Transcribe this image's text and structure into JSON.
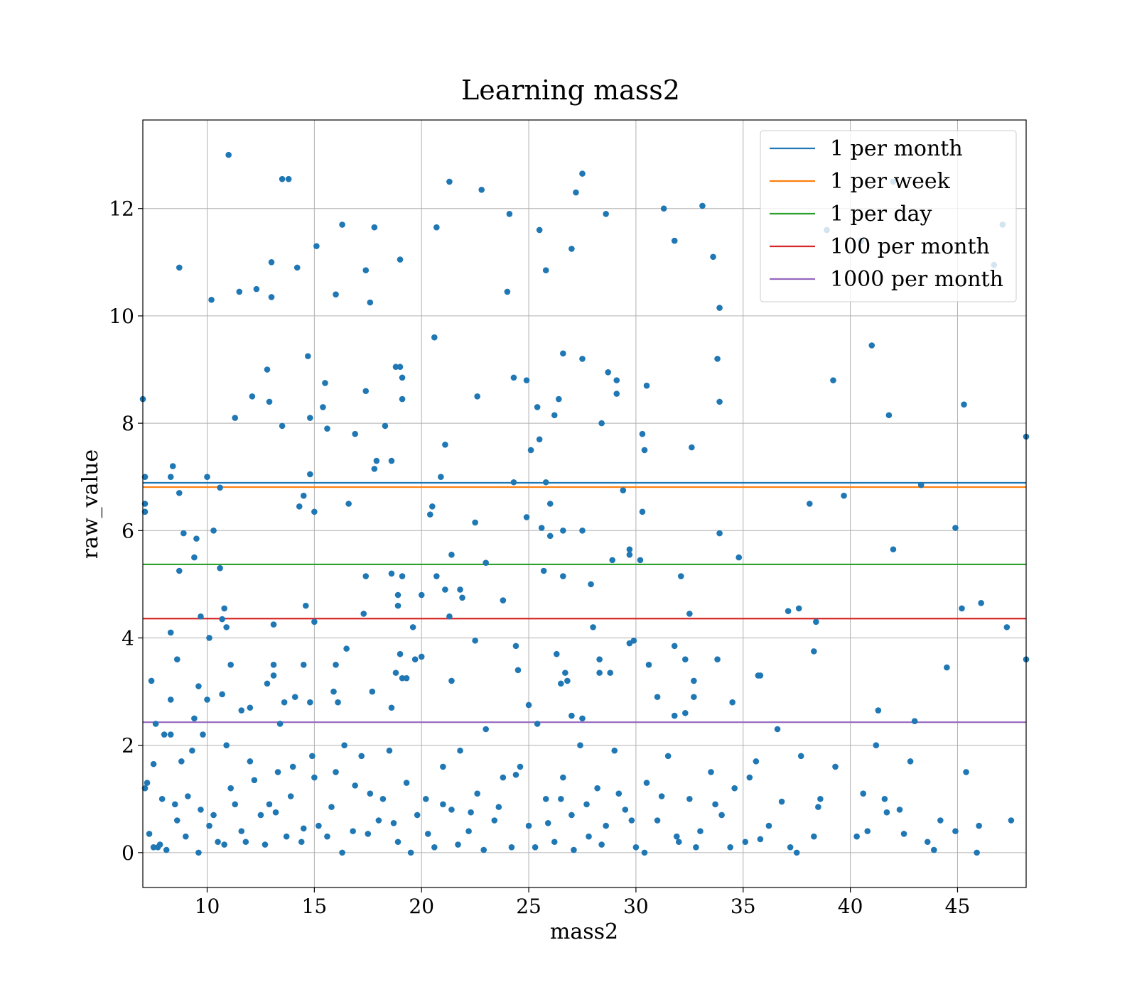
{
  "chart_data": {
    "type": "scatter",
    "title": "Learning mass2",
    "xlabel": "mass2",
    "ylabel": "raw_value",
    "xlim": [
      7.0,
      48.2
    ],
    "ylim": [
      -0.65,
      13.65
    ],
    "xticks": [
      10,
      15,
      20,
      25,
      30,
      35,
      40,
      45
    ],
    "yticks": [
      0,
      2,
      4,
      6,
      8,
      10,
      12
    ],
    "grid": true,
    "legend_position": "top-right",
    "point_color": "#1f77b4",
    "hlines": [
      {
        "name": "1 per month",
        "y": 6.89,
        "color": "#1f77b4"
      },
      {
        "name": "1 per week",
        "y": 6.81,
        "color": "#ff7f0e"
      },
      {
        "name": "1 per day",
        "y": 5.37,
        "color": "#2ca02c"
      },
      {
        "name": "100 per month",
        "y": 4.36,
        "color": "#d62728"
      },
      {
        "name": "1000 per month",
        "y": 2.43,
        "color": "#9467bd"
      }
    ],
    "points": [
      [
        11.0,
        13.0
      ],
      [
        13.5,
        12.55
      ],
      [
        13.8,
        12.55
      ],
      [
        21.3,
        12.5
      ],
      [
        22.8,
        12.35
      ],
      [
        27.5,
        12.65
      ],
      [
        27.2,
        12.3
      ],
      [
        31.3,
        12.0
      ],
      [
        33.1,
        12.05
      ],
      [
        42.0,
        12.5
      ],
      [
        16.3,
        11.7
      ],
      [
        17.8,
        11.65
      ],
      [
        20.7,
        11.65
      ],
      [
        24.1,
        11.9
      ],
      [
        25.5,
        11.6
      ],
      [
        28.6,
        11.9
      ],
      [
        31.8,
        11.4
      ],
      [
        38.9,
        11.6
      ],
      [
        47.1,
        11.7
      ],
      [
        40.5,
        11.4
      ],
      [
        8.7,
        10.9
      ],
      [
        10.2,
        10.3
      ],
      [
        11.5,
        10.45
      ],
      [
        12.3,
        10.5
      ],
      [
        13.0,
        10.35
      ],
      [
        13.0,
        11.0
      ],
      [
        14.2,
        10.9
      ],
      [
        15.1,
        11.3
      ],
      [
        16.0,
        10.4
      ],
      [
        17.4,
        10.85
      ],
      [
        17.6,
        10.25
      ],
      [
        19.0,
        11.05
      ],
      [
        24.0,
        10.45
      ],
      [
        25.8,
        10.85
      ],
      [
        27.0,
        11.25
      ],
      [
        33.6,
        11.1
      ],
      [
        33.9,
        10.15
      ],
      [
        46.7,
        10.95
      ],
      [
        14.7,
        9.25
      ],
      [
        18.8,
        9.05
      ],
      [
        19.0,
        9.05
      ],
      [
        20.6,
        9.6
      ],
      [
        26.6,
        9.3
      ],
      [
        27.5,
        9.2
      ],
      [
        33.8,
        9.2
      ],
      [
        41.0,
        9.45
      ],
      [
        7.0,
        8.45
      ],
      [
        11.3,
        8.1
      ],
      [
        12.1,
        8.5
      ],
      [
        12.8,
        9.0
      ],
      [
        12.9,
        8.4
      ],
      [
        14.8,
        8.1
      ],
      [
        15.4,
        8.3
      ],
      [
        15.5,
        8.75
      ],
      [
        15.6,
        7.9
      ],
      [
        13.5,
        7.95
      ],
      [
        16.9,
        7.8
      ],
      [
        17.4,
        8.6
      ],
      [
        18.3,
        7.95
      ],
      [
        19.1,
        8.85
      ],
      [
        19.1,
        8.45
      ],
      [
        22.6,
        8.5
      ],
      [
        24.3,
        8.85
      ],
      [
        24.9,
        8.8
      ],
      [
        25.4,
        8.3
      ],
      [
        26.2,
        8.15
      ],
      [
        26.4,
        8.45
      ],
      [
        28.4,
        8.0
      ],
      [
        28.7,
        8.95
      ],
      [
        29.1,
        8.8
      ],
      [
        29.1,
        8.55
      ],
      [
        30.5,
        8.7
      ],
      [
        33.9,
        8.4
      ],
      [
        39.2,
        8.8
      ],
      [
        41.8,
        8.15
      ],
      [
        45.3,
        8.35
      ],
      [
        48.2,
        7.75
      ],
      [
        7.1,
        7.0
      ],
      [
        8.3,
        7.0
      ],
      [
        8.4,
        7.2
      ],
      [
        10.0,
        7.0
      ],
      [
        14.8,
        7.05
      ],
      [
        17.8,
        7.15
      ],
      [
        17.9,
        7.3
      ],
      [
        18.6,
        7.3
      ],
      [
        20.9,
        7.0
      ],
      [
        21.1,
        7.6
      ],
      [
        25.1,
        7.5
      ],
      [
        25.5,
        7.7
      ],
      [
        30.3,
        7.8
      ],
      [
        30.4,
        7.5
      ],
      [
        32.6,
        7.55
      ],
      [
        7.1,
        6.5
      ],
      [
        7.1,
        6.35
      ],
      [
        8.7,
        6.7
      ],
      [
        10.6,
        6.8
      ],
      [
        14.3,
        6.45
      ],
      [
        14.5,
        6.65
      ],
      [
        15.0,
        6.35
      ],
      [
        16.6,
        6.5
      ],
      [
        20.4,
        6.3
      ],
      [
        20.5,
        6.45
      ],
      [
        22.5,
        6.15
      ],
      [
        24.9,
        6.25
      ],
      [
        25.6,
        6.05
      ],
      [
        26.0,
        6.5
      ],
      [
        29.4,
        6.75
      ],
      [
        30.3,
        6.35
      ],
      [
        38.1,
        6.5
      ],
      [
        39.7,
        6.65
      ],
      [
        43.3,
        6.85
      ],
      [
        44.9,
        6.05
      ],
      [
        24.3,
        6.9
      ],
      [
        25.8,
        6.9
      ],
      [
        8.9,
        5.95
      ],
      [
        9.4,
        5.5
      ],
      [
        9.5,
        5.85
      ],
      [
        10.3,
        6.0
      ],
      [
        8.7,
        5.25
      ],
      [
        10.6,
        5.3
      ],
      [
        21.4,
        5.55
      ],
      [
        23.0,
        5.4
      ],
      [
        25.7,
        5.25
      ],
      [
        26.0,
        5.9
      ],
      [
        26.6,
        6.0
      ],
      [
        27.5,
        6.0
      ],
      [
        28.9,
        5.45
      ],
      [
        29.7,
        5.65
      ],
      [
        29.7,
        5.55
      ],
      [
        30.2,
        5.45
      ],
      [
        33.9,
        5.95
      ],
      [
        34.8,
        5.5
      ],
      [
        42.0,
        5.65
      ],
      [
        17.4,
        5.15
      ],
      [
        18.6,
        5.2
      ],
      [
        18.9,
        4.8
      ],
      [
        19.1,
        5.15
      ],
      [
        20.0,
        4.8
      ],
      [
        20.7,
        5.15
      ],
      [
        21.1,
        4.9
      ],
      [
        21.8,
        4.9
      ],
      [
        21.9,
        4.75
      ],
      [
        26.6,
        5.15
      ],
      [
        27.9,
        5.0
      ],
      [
        32.1,
        5.15
      ],
      [
        10.8,
        4.55
      ],
      [
        14.6,
        4.6
      ],
      [
        18.9,
        4.6
      ],
      [
        21.3,
        4.4
      ],
      [
        23.8,
        4.7
      ],
      [
        32.5,
        4.45
      ],
      [
        37.1,
        4.5
      ],
      [
        37.6,
        4.55
      ],
      [
        45.2,
        4.55
      ],
      [
        46.1,
        4.65
      ],
      [
        8.3,
        4.1
      ],
      [
        9.7,
        4.4
      ],
      [
        10.1,
        4.0
      ],
      [
        10.7,
        4.35
      ],
      [
        10.9,
        4.2
      ],
      [
        13.1,
        4.25
      ],
      [
        15.0,
        4.3
      ],
      [
        17.3,
        4.45
      ],
      [
        19.6,
        4.2
      ],
      [
        22.5,
        3.95
      ],
      [
        28.0,
        4.2
      ],
      [
        29.7,
        3.9
      ],
      [
        29.9,
        3.95
      ],
      [
        38.4,
        4.3
      ],
      [
        38.3,
        3.75
      ],
      [
        47.3,
        4.2
      ],
      [
        7.4,
        3.2
      ],
      [
        8.6,
        3.6
      ],
      [
        9.6,
        3.1
      ],
      [
        11.1,
        3.5
      ],
      [
        12.8,
        3.15
      ],
      [
        13.1,
        3.5
      ],
      [
        13.1,
        3.3
      ],
      [
        13.4,
        2.4
      ],
      [
        14.5,
        3.5
      ],
      [
        16.0,
        3.5
      ],
      [
        16.5,
        3.8
      ],
      [
        15.9,
        3.0
      ],
      [
        16.1,
        2.8
      ],
      [
        17.7,
        3.0
      ],
      [
        18.8,
        3.35
      ],
      [
        19.0,
        3.7
      ],
      [
        19.1,
        3.25
      ],
      [
        19.3,
        3.25
      ],
      [
        19.7,
        3.6
      ],
      [
        20.0,
        3.65
      ],
      [
        21.4,
        3.2
      ],
      [
        24.4,
        3.85
      ],
      [
        24.5,
        3.4
      ],
      [
        26.3,
        3.7
      ],
      [
        26.5,
        3.15
      ],
      [
        26.7,
        3.35
      ],
      [
        26.8,
        3.2
      ],
      [
        28.3,
        3.6
      ],
      [
        28.3,
        3.35
      ],
      [
        28.8,
        3.35
      ],
      [
        30.6,
        3.5
      ],
      [
        31.0,
        2.9
      ],
      [
        31.8,
        3.85
      ],
      [
        32.3,
        3.6
      ],
      [
        32.7,
        3.2
      ],
      [
        33.8,
        3.6
      ],
      [
        35.7,
        3.3
      ],
      [
        35.8,
        3.3
      ],
      [
        44.5,
        3.45
      ],
      [
        48.2,
        3.6
      ],
      [
        8.3,
        2.85
      ],
      [
        9.4,
        2.5
      ],
      [
        9.8,
        2.2
      ],
      [
        10.0,
        2.85
      ],
      [
        10.7,
        2.95
      ],
      [
        11.6,
        2.65
      ],
      [
        12.0,
        2.7
      ],
      [
        13.6,
        2.8
      ],
      [
        14.1,
        2.9
      ],
      [
        14.8,
        2.8
      ],
      [
        18.6,
        2.7
      ],
      [
        25.0,
        2.75
      ],
      [
        27.0,
        2.55
      ],
      [
        27.5,
        2.5
      ],
      [
        31.8,
        2.55
      ],
      [
        32.3,
        2.6
      ],
      [
        32.7,
        2.9
      ],
      [
        34.5,
        2.8
      ],
      [
        41.3,
        2.65
      ],
      [
        43.0,
        2.45
      ],
      [
        7.2,
        1.3
      ],
      [
        7.5,
        0.1
      ],
      [
        7.6,
        2.4
      ],
      [
        7.7,
        0.1
      ],
      [
        7.8,
        0.15
      ],
      [
        8.0,
        2.2
      ],
      [
        8.3,
        2.2
      ],
      [
        8.5,
        0.9
      ],
      [
        8.8,
        1.7
      ],
      [
        9.0,
        0.3
      ],
      [
        9.3,
        1.9
      ],
      [
        9.7,
        0.8
      ],
      [
        10.1,
        0.5
      ],
      [
        10.5,
        0.2
      ],
      [
        10.9,
        2.0
      ],
      [
        11.1,
        1.2
      ],
      [
        11.6,
        0.4
      ],
      [
        12.0,
        1.7
      ],
      [
        12.5,
        0.7
      ],
      [
        12.9,
        0.9
      ],
      [
        13.3,
        1.5
      ],
      [
        13.7,
        0.3
      ],
      [
        14.0,
        1.6
      ],
      [
        14.4,
        0.2
      ],
      [
        14.9,
        1.8
      ],
      [
        15.2,
        0.5
      ],
      [
        15.6,
        0.3
      ],
      [
        16.0,
        1.5
      ],
      [
        16.4,
        2.0
      ],
      [
        16.8,
        0.4
      ],
      [
        17.2,
        1.8
      ],
      [
        17.6,
        1.1
      ],
      [
        18.0,
        0.6
      ],
      [
        18.5,
        1.9
      ],
      [
        18.9,
        0.2
      ],
      [
        19.3,
        1.3
      ],
      [
        19.8,
        0.7
      ],
      [
        20.2,
        1.0
      ],
      [
        20.6,
        0.1
      ],
      [
        21.0,
        1.6
      ],
      [
        21.4,
        0.8
      ],
      [
        21.8,
        1.9
      ],
      [
        22.2,
        0.4
      ],
      [
        22.6,
        1.1
      ],
      [
        23.0,
        2.3
      ],
      [
        23.4,
        0.6
      ],
      [
        23.8,
        1.4
      ],
      [
        24.2,
        0.1
      ],
      [
        24.6,
        1.6
      ],
      [
        25.0,
        0.5
      ],
      [
        25.4,
        2.4
      ],
      [
        25.8,
        1.0
      ],
      [
        26.2,
        0.2
      ],
      [
        26.6,
        1.4
      ],
      [
        27.0,
        0.7
      ],
      [
        27.4,
        2.0
      ],
      [
        27.8,
        0.3
      ],
      [
        28.2,
        1.2
      ],
      [
        28.6,
        0.5
      ],
      [
        29.0,
        1.9
      ],
      [
        29.5,
        0.8
      ],
      [
        30.0,
        0.1
      ],
      [
        30.5,
        1.3
      ],
      [
        31.0,
        0.6
      ],
      [
        31.5,
        1.8
      ],
      [
        32.0,
        0.2
      ],
      [
        32.5,
        1.0
      ],
      [
        33.0,
        0.4
      ],
      [
        33.5,
        1.5
      ],
      [
        34.0,
        0.7
      ],
      [
        34.6,
        1.2
      ],
      [
        35.1,
        0.2
      ],
      [
        35.6,
        1.7
      ],
      [
        36.2,
        0.5
      ],
      [
        36.6,
        2.3
      ],
      [
        37.2,
        0.1
      ],
      [
        37.7,
        1.8
      ],
      [
        38.3,
        0.3
      ],
      [
        38.6,
        1.0
      ],
      [
        39.3,
        1.6
      ],
      [
        40.3,
        0.3
      ],
      [
        40.8,
        0.4
      ],
      [
        41.2,
        2.0
      ],
      [
        41.6,
        1.0
      ],
      [
        42.3,
        0.8
      ],
      [
        42.8,
        1.7
      ],
      [
        43.6,
        0.2
      ],
      [
        44.2,
        0.6
      ],
      [
        44.9,
        0.4
      ],
      [
        45.4,
        1.5
      ],
      [
        46.0,
        0.5
      ],
      [
        47.5,
        0.6
      ],
      [
        7.1,
        1.2
      ],
      [
        7.3,
        0.35
      ],
      [
        7.5,
        1.65
      ],
      [
        7.9,
        1.0
      ],
      [
        8.1,
        0.05
      ],
      [
        8.6,
        0.6
      ],
      [
        9.1,
        1.05
      ],
      [
        9.6,
        0.0
      ],
      [
        10.3,
        0.7
      ],
      [
        10.8,
        0.15
      ],
      [
        11.3,
        0.9
      ],
      [
        11.8,
        0.2
      ],
      [
        12.2,
        1.35
      ],
      [
        12.7,
        0.15
      ],
      [
        13.2,
        0.75
      ],
      [
        13.9,
        1.05
      ],
      [
        14.5,
        0.45
      ],
      [
        15.0,
        1.4
      ],
      [
        15.8,
        0.85
      ],
      [
        16.3,
        0.0
      ],
      [
        16.9,
        1.25
      ],
      [
        17.5,
        0.35
      ],
      [
        18.2,
        1.0
      ],
      [
        18.7,
        0.55
      ],
      [
        19.5,
        0.0
      ],
      [
        20.3,
        0.35
      ],
      [
        21.0,
        0.9
      ],
      [
        21.7,
        0.15
      ],
      [
        22.3,
        0.75
      ],
      [
        22.9,
        0.05
      ],
      [
        23.6,
        0.85
      ],
      [
        24.4,
        1.45
      ],
      [
        25.3,
        0.1
      ],
      [
        25.9,
        0.55
      ],
      [
        26.5,
        1.0
      ],
      [
        27.1,
        0.05
      ],
      [
        27.7,
        0.9
      ],
      [
        28.4,
        0.15
      ],
      [
        29.2,
        1.1
      ],
      [
        29.8,
        0.6
      ],
      [
        30.4,
        0.0
      ],
      [
        31.2,
        1.05
      ],
      [
        31.9,
        0.3
      ],
      [
        32.8,
        0.1
      ],
      [
        33.7,
        0.9
      ],
      [
        34.4,
        0.1
      ],
      [
        35.3,
        1.4
      ],
      [
        35.8,
        0.25
      ],
      [
        36.8,
        0.95
      ],
      [
        37.5,
        0.0
      ],
      [
        38.5,
        0.85
      ],
      [
        40.6,
        1.1
      ],
      [
        41.7,
        0.75
      ],
      [
        42.5,
        0.35
      ],
      [
        43.9,
        0.05
      ],
      [
        45.9,
        0.0
      ]
    ]
  }
}
